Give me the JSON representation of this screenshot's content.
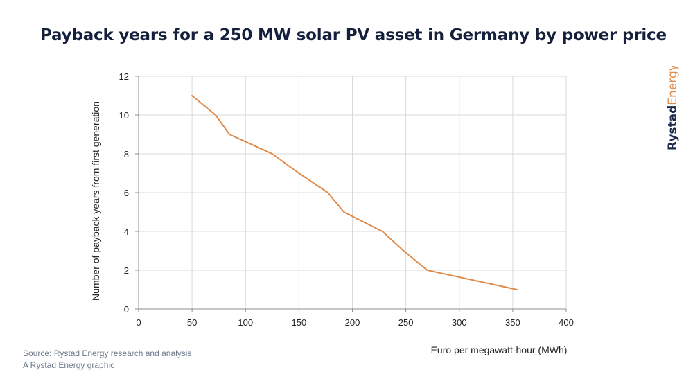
{
  "title": "Payback years for a 250 MW solar PV asset in Germany by power price",
  "logo": {
    "part1": "Rystad",
    "part2": "Energy",
    "color_part1": "#1b2a4a",
    "color_part2": "#e08a4a"
  },
  "footer": {
    "source": "Source: Rystad Energy research and analysis",
    "credit": "A Rystad Energy graphic"
  },
  "chart_data": {
    "type": "line",
    "xlabel": "Euro per megawatt-hour (MWh)",
    "ylabel": "Number of payback years from first generation",
    "xlim": [
      0,
      400
    ],
    "ylim": [
      0,
      12
    ],
    "x_ticks": [
      0,
      50,
      100,
      150,
      200,
      250,
      300,
      350,
      400
    ],
    "y_ticks": [
      0,
      2,
      4,
      6,
      8,
      10,
      12
    ],
    "grid": true,
    "series": [
      {
        "color": "#e08a4a",
        "points": [
          [
            50,
            11
          ],
          [
            72,
            10
          ],
          [
            85,
            9
          ],
          [
            125,
            8
          ],
          [
            150,
            7
          ],
          [
            177,
            6
          ],
          [
            192,
            5
          ],
          [
            228,
            4
          ],
          [
            248,
            3
          ],
          [
            270,
            2
          ],
          [
            354,
            1
          ]
        ]
      }
    ]
  }
}
